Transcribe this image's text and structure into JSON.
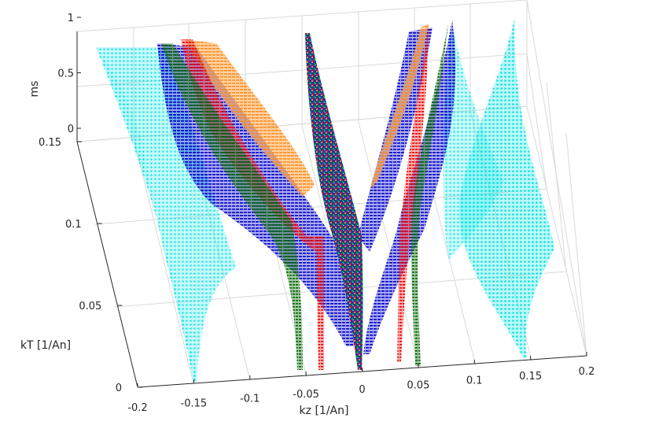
{
  "chart_data": {
    "type": "scatter",
    "subtype": "3d-scatter-surfaces",
    "grid": true,
    "axes": {
      "x": {
        "label": "kz [1/An]",
        "range": [
          -0.2,
          0.2
        ],
        "ticks": [
          -0.2,
          -0.15,
          -0.1,
          -0.05,
          0,
          0.05,
          0.1,
          0.15,
          0.2
        ],
        "tick_labels": [
          "-0.2",
          "-0.15",
          "-0.1",
          "-0.05",
          "0",
          "0.05",
          "0.1",
          "0.15",
          "0.2"
        ]
      },
      "y": {
        "label": "kT [1/An]",
        "range": [
          0,
          0.15
        ],
        "ticks": [
          0,
          0.05,
          0.1,
          0.15
        ],
        "tick_labels": [
          "0",
          "0.05",
          "0.1",
          "0.15"
        ]
      },
      "z": {
        "label": "ms",
        "range": [
          0,
          1
        ],
        "ticks": [
          0,
          0.5,
          1
        ],
        "tick_labels": [
          "0",
          "0.5",
          "1"
        ]
      }
    },
    "series": [
      {
        "color": "#00e5e5",
        "kz_at_kT0": [
          -0.152,
          0.14
        ],
        "ms_range": [
          0.2,
          1.0
        ]
      },
      {
        "color": "#0000cc",
        "kz_at_kT0": [
          -0.12,
          0.045,
          0.072
        ],
        "ms_range": [
          0.3,
          1.0
        ]
      },
      {
        "color": "#ff8c1a",
        "kz_at_kT0": [
          -0.09,
          0.05
        ],
        "ms_range": [
          0.5,
          1.0
        ]
      },
      {
        "color": "#ee0000",
        "kz_at_kT0": [
          -0.04,
          0.03
        ],
        "ms_range": [
          0.0,
          1.0
        ]
      },
      {
        "color": "#006600",
        "kz_at_kT0": [
          -0.06,
          0.05
        ],
        "ms_range": [
          0.0,
          1.0
        ]
      },
      {
        "color": "#ff8c1a",
        "kz_at_kT0": [
          -0.005
        ],
        "ms_range": [
          0.0,
          1.0
        ]
      }
    ]
  }
}
